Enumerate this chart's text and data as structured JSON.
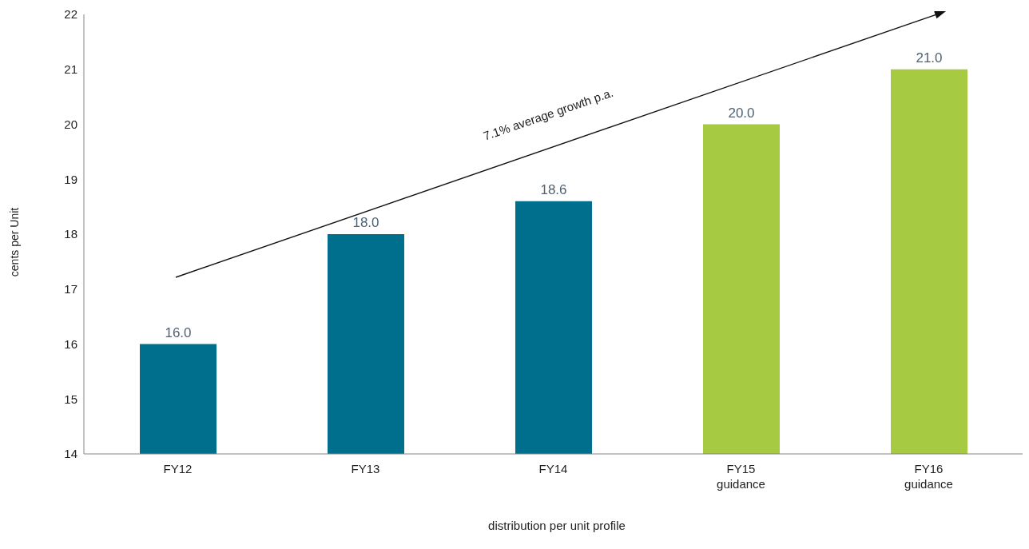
{
  "chart_data": {
    "type": "bar",
    "xlabel": "distribution per unit profile",
    "ylabel": "cents per Unit",
    "categories": [
      "FY12",
      "FY13",
      "FY14",
      "FY15\nguidance",
      "FY16\nguidance"
    ],
    "values": [
      16.0,
      18.0,
      18.6,
      20.0,
      21.0
    ],
    "colors": [
      "#006f8e",
      "#006f8e",
      "#006f8e",
      "#a6ca42",
      "#a6ca42"
    ],
    "value_labels": [
      "16.0",
      "18.0",
      "18.6",
      "20.0",
      "21.0"
    ],
    "ylim": [
      14,
      22
    ],
    "yticks": [
      14,
      15,
      16,
      17,
      18,
      19,
      20,
      21,
      22
    ],
    "grid": false,
    "legend": false,
    "annotations": [
      "7.1% average growth p.a."
    ]
  }
}
